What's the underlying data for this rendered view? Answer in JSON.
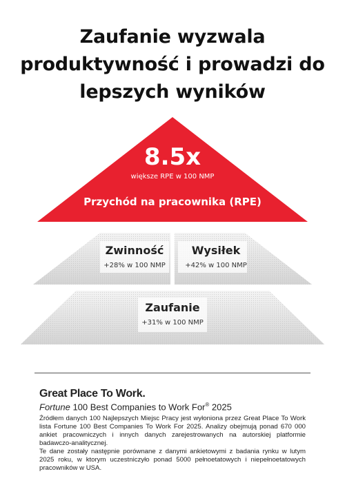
{
  "title": {
    "line1": "Zaufanie wyzwala",
    "line2": "produktywność i prowadzi do",
    "line3": "lepszych wyników"
  },
  "pyramid": {
    "top": {
      "value": "8.5x",
      "subtitle": "większe RPE w 100 NMP",
      "label": "Przychód na pracownika (RPE)",
      "color": "#e8212f"
    },
    "middle_left": {
      "title": "Zwinność",
      "subtitle": "+28% w 100 NMP"
    },
    "middle_right": {
      "title": "Wysiłek",
      "subtitle": "+42% w 100 NMP"
    },
    "bottom": {
      "title": "Zaufanie",
      "subtitle": "+31% w 100 NMP"
    }
  },
  "footer": {
    "brand": "Great Place To Work.",
    "list_italic": "Fortune",
    "list_rest": "100 Best Companies to Work For",
    "list_reg": "®",
    "list_year": "2025",
    "paragraph1": "Źródłem danych 100 Najlepszych Miejsc Pracy jest wyłoniona przez Great Place To Work lista Fortune 100 Best Companies To Work For 2025. Analizy obejmują ponad 670 000 ankiet pracowniczych i innych danych zarejestrowanych na autorskiej platformie badawczo-analitycznej.",
    "paragraph2": "Te dane zostały następnie porównane z danymi ankietowymi z badania rynku w lutym 2025 roku, w ktorym uczestniczyło ponad 5000 pełnoetatowych i niepełnoetatowych pracowników w USA."
  }
}
